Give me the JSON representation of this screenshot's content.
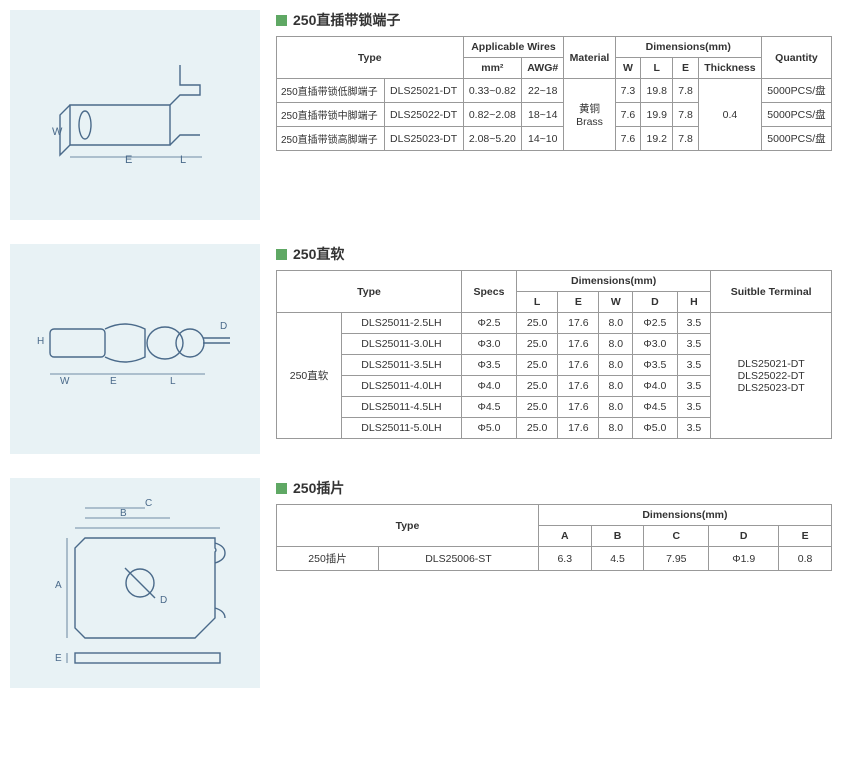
{
  "colors": {
    "accent_green": "#5fa864",
    "diagram_bg": "#e8f2f5",
    "border": "#999999",
    "text": "#333333",
    "diagram_stroke": "#4a6a8a"
  },
  "section1": {
    "title": "250直插带锁端子",
    "headers": {
      "type": "Type",
      "applicable_wires": "Applicable Wires",
      "mm2": "mm²",
      "awg": "AWG#",
      "material": "Material",
      "dimensions": "Dimensions(mm)",
      "w": "W",
      "l": "L",
      "e": "E",
      "thickness": "Thickness",
      "quantity": "Quantity"
    },
    "material": "黄铜\nBrass",
    "thickness": "0.4",
    "rows": [
      {
        "name": "250直插带锁低脚端子",
        "model": "DLS25021-DT",
        "mm2": "0.33~0.82",
        "awg": "22~18",
        "w": "7.3",
        "l": "19.8",
        "e": "7.8",
        "qty": "5000PCS/盘"
      },
      {
        "name": "250直插带锁中脚端子",
        "model": "DLS25022-DT",
        "mm2": "0.82~2.08",
        "awg": "18~14",
        "w": "7.6",
        "l": "19.9",
        "e": "7.8",
        "qty": "5000PCS/盘"
      },
      {
        "name": "250直插带锁高脚端子",
        "model": "DLS25023-DT",
        "mm2": "2.08~5.20",
        "awg": "14~10",
        "w": "7.6",
        "l": "19.2",
        "e": "7.8",
        "qty": "5000PCS/盘"
      }
    ],
    "diagram_labels": {
      "w": "W",
      "e": "E",
      "l": "L"
    }
  },
  "section2": {
    "title": "250直软",
    "headers": {
      "type": "Type",
      "specs": "Specs",
      "dimensions": "Dimensions(mm)",
      "l": "L",
      "e": "E",
      "w": "W",
      "d": "D",
      "h": "H",
      "suitable": "Suitble Terminal"
    },
    "group_label": "250直软",
    "suitable": "DLS25021-DT\nDLS25022-DT\nDLS25023-DT",
    "rows": [
      {
        "model": "DLS25011-2.5LH",
        "specs": "Φ2.5",
        "l": "25.0",
        "e": "17.6",
        "w": "8.0",
        "d": "Φ2.5",
        "h": "3.5"
      },
      {
        "model": "DLS25011-3.0LH",
        "specs": "Φ3.0",
        "l": "25.0",
        "e": "17.6",
        "w": "8.0",
        "d": "Φ3.0",
        "h": "3.5"
      },
      {
        "model": "DLS25011-3.5LH",
        "specs": "Φ3.5",
        "l": "25.0",
        "e": "17.6",
        "w": "8.0",
        "d": "Φ3.5",
        "h": "3.5"
      },
      {
        "model": "DLS25011-4.0LH",
        "specs": "Φ4.0",
        "l": "25.0",
        "e": "17.6",
        "w": "8.0",
        "d": "Φ4.0",
        "h": "3.5"
      },
      {
        "model": "DLS25011-4.5LH",
        "specs": "Φ4.5",
        "l": "25.0",
        "e": "17.6",
        "w": "8.0",
        "d": "Φ4.5",
        "h": "3.5"
      },
      {
        "model": "DLS25011-5.0LH",
        "specs": "Φ5.0",
        "l": "25.0",
        "e": "17.6",
        "w": "8.0",
        "d": "Φ5.0",
        "h": "3.5"
      }
    ],
    "diagram_labels": {
      "h": "H",
      "w": "W",
      "e": "E",
      "l": "L",
      "d": "D"
    }
  },
  "section3": {
    "title": "250插片",
    "headers": {
      "type": "Type",
      "dimensions": "Dimensions(mm)",
      "a": "A",
      "b": "B",
      "c": "C",
      "d": "D",
      "e": "E"
    },
    "row": {
      "name": "250插片",
      "model": "DLS25006-ST",
      "a": "6.3",
      "b": "4.5",
      "c": "7.95",
      "d": "Φ1.9",
      "e": "0.8"
    },
    "diagram_labels": {
      "a": "A",
      "b": "B",
      "c": "C",
      "d": "D",
      "e": "E"
    }
  }
}
